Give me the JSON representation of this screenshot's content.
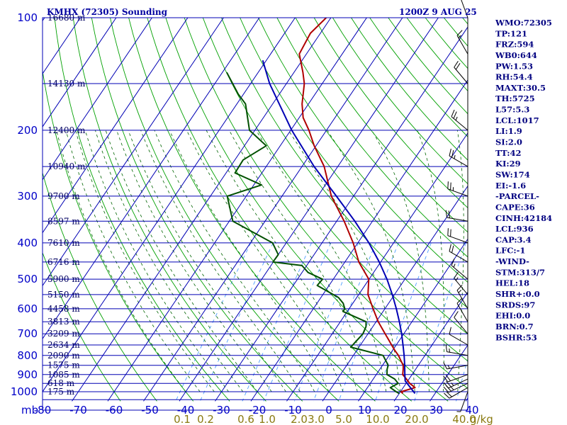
{
  "chart_data": {
    "type": "line",
    "title": "KMHX (72305) Sounding",
    "valid_time": "1200Z  9 AUG 25",
    "pressure_unit": "mb",
    "height_unit": "m",
    "mixing_ratio_unit": "g/kg",
    "pressure_ticks": [
      100,
      200,
      300,
      400,
      500,
      600,
      700,
      800,
      900,
      1000
    ],
    "temperature_ticks": [
      -80,
      -70,
      -60,
      -50,
      -40,
      -30,
      -20,
      -10,
      0,
      10,
      20,
      30,
      40
    ],
    "mixing_ratio_ticks": [
      "0.1",
      "0.2",
      "0.6",
      "1.0",
      "2.0",
      "3.0",
      "5.0",
      "10.0",
      "20.0",
      "40.0"
    ],
    "height_labels": [
      {
        "p": 100,
        "text": "16680 m"
      },
      {
        "p": 150,
        "text": "14130 m"
      },
      {
        "p": 200,
        "text": "12400 m"
      },
      {
        "p": 250,
        "text": "10940 m"
      },
      {
        "p": 300,
        "text": "9700 m"
      },
      {
        "p": 350,
        "text": "8597 m"
      },
      {
        "p": 400,
        "text": "7610 m"
      },
      {
        "p": 450,
        "text": "6716 m"
      },
      {
        "p": 500,
        "text": "5900 m"
      },
      {
        "p": 550,
        "text": "5150 m"
      },
      {
        "p": 600,
        "text": "4458 m"
      },
      {
        "p": 650,
        "text": "3813 m"
      },
      {
        "p": 700,
        "text": "3209 m"
      },
      {
        "p": 750,
        "text": "2634 m"
      },
      {
        "p": 800,
        "text": "2090 m"
      },
      {
        "p": 850,
        "text": "1575 m"
      },
      {
        "p": 900,
        "text": "1085 m"
      },
      {
        "p": 950,
        "text": "618 m"
      },
      {
        "p": 1000,
        "text": "175 m"
      }
    ],
    "series": [
      {
        "name": "Temperature",
        "color": "#b00000",
        "points": [
          [
            1011,
            21.0
          ],
          [
            1000,
            20.2
          ],
          [
            975,
            23.3
          ],
          [
            950,
            21.0
          ],
          [
            925,
            19.3
          ],
          [
            900,
            17.4
          ],
          [
            870,
            16.5
          ],
          [
            850,
            15.8
          ],
          [
            825,
            14.2
          ],
          [
            800,
            12.6
          ],
          [
            775,
            10.6
          ],
          [
            750,
            8.7
          ],
          [
            725,
            6.8
          ],
          [
            700,
            4.8
          ],
          [
            650,
            0.6
          ],
          [
            600,
            -3.3
          ],
          [
            575,
            -5.3
          ],
          [
            550,
            -7.4
          ],
          [
            500,
            -10.1
          ],
          [
            450,
            -16.1
          ],
          [
            400,
            -21.3
          ],
          [
            350,
            -27.9
          ],
          [
            300,
            -36.2
          ],
          [
            250,
            -43.8
          ],
          [
            220,
            -50.5
          ],
          [
            200,
            -54.9
          ],
          [
            185,
            -58.9
          ],
          [
            170,
            -61.8
          ],
          [
            150,
            -65.0
          ],
          [
            140,
            -67.5
          ],
          [
            125,
            -72.0
          ],
          [
            110,
            -72.8
          ],
          [
            100,
            -71.3
          ]
        ]
      },
      {
        "name": "Dewpoint",
        "color": "#005000",
        "points": [
          [
            1011,
            20.0
          ],
          [
            1000,
            18.8
          ],
          [
            975,
            16.4
          ],
          [
            950,
            17.8
          ],
          [
            925,
            16.0
          ],
          [
            900,
            13.0
          ],
          [
            870,
            12.0
          ],
          [
            850,
            11.6
          ],
          [
            800,
            8.3
          ],
          [
            760,
            -2.3
          ],
          [
            700,
            -1.4
          ],
          [
            670,
            -1.9
          ],
          [
            650,
            -2.8
          ],
          [
            610,
            -11.2
          ],
          [
            600,
            -11.2
          ],
          [
            580,
            -12.7
          ],
          [
            560,
            -15.1
          ],
          [
            520,
            -23.3
          ],
          [
            500,
            -23.0
          ],
          [
            480,
            -28.3
          ],
          [
            460,
            -31.3
          ],
          [
            450,
            -40.1
          ],
          [
            430,
            -40.0
          ],
          [
            400,
            -43.8
          ],
          [
            350,
            -59.0
          ],
          [
            300,
            -65.3
          ],
          [
            280,
            -57.8
          ],
          [
            260,
            -67.5
          ],
          [
            240,
            -67.7
          ],
          [
            220,
            -63.9
          ],
          [
            200,
            -71.5
          ],
          [
            170,
            -77.6
          ],
          [
            160,
            -81.5
          ],
          [
            140,
            -88.8
          ]
        ]
      },
      {
        "name": "Parcel",
        "color": "#0000b4",
        "points": [
          [
            1011,
            24.4
          ],
          [
            936,
            19.3
          ],
          [
            900,
            18.0
          ],
          [
            850,
            16.2
          ],
          [
            800,
            14.2
          ],
          [
            750,
            11.9
          ],
          [
            700,
            9.4
          ],
          [
            650,
            6.5
          ],
          [
            600,
            3.2
          ],
          [
            550,
            -0.6
          ],
          [
            500,
            -5.0
          ],
          [
            450,
            -10.4
          ],
          [
            400,
            -16.9
          ],
          [
            350,
            -24.9
          ],
          [
            300,
            -34.8
          ],
          [
            250,
            -46.6
          ],
          [
            200,
            -59.7
          ],
          [
            150,
            -74.7
          ],
          [
            130,
            -81.0
          ]
        ]
      }
    ],
    "wind_barbs": [
      {
        "p": 1000,
        "dir": 200,
        "spd": 5
      },
      {
        "p": 975,
        "dir": 240,
        "spd": 20
      },
      {
        "p": 950,
        "dir": 245,
        "spd": 25
      },
      {
        "p": 925,
        "dir": 245,
        "spd": 25
      },
      {
        "p": 900,
        "dir": 250,
        "spd": 20
      },
      {
        "p": 850,
        "dir": 260,
        "spd": 15
      },
      {
        "p": 800,
        "dir": 280,
        "spd": 15
      },
      {
        "p": 750,
        "dir": 300,
        "spd": 10
      },
      {
        "p": 700,
        "dir": 320,
        "spd": 10
      },
      {
        "p": 650,
        "dir": 330,
        "spd": 10
      },
      {
        "p": 600,
        "dir": 330,
        "spd": 15
      },
      {
        "p": 550,
        "dir": 320,
        "spd": 15
      },
      {
        "p": 500,
        "dir": 310,
        "spd": 15
      },
      {
        "p": 450,
        "dir": 300,
        "spd": 20
      },
      {
        "p": 400,
        "dir": 290,
        "spd": 20
      },
      {
        "p": 350,
        "dir": 280,
        "spd": 20
      },
      {
        "p": 300,
        "dir": 290,
        "spd": 25
      },
      {
        "p": 250,
        "dir": 300,
        "spd": 25
      },
      {
        "p": 200,
        "dir": 310,
        "spd": 25
      },
      {
        "p": 150,
        "dir": 320,
        "spd": 20
      },
      {
        "p": 125,
        "dir": 330,
        "spd": 15
      },
      {
        "p": 100,
        "dir": 340,
        "spd": 10
      }
    ],
    "colors": {
      "isobar": "#0000b4",
      "isotherm": "#0000b4",
      "dry_adiabat": "#00a000",
      "moist_adiabat": "#006400",
      "mixing_ratio": "#50a0ff",
      "wind": "#000000"
    }
  },
  "indices": [
    "WMO:72305",
    "TP:121",
    "FRZ:594",
    "WB0:644",
    "PW:1.53",
    "RH:54.4",
    "MAXT:30.5",
    "TH:5725",
    "L57:5.3",
    "LCL:1017",
    "LI:1.9",
    "SI:2.0",
    "TT:42",
    "KI:29",
    "SW:174",
    "EI:-1.6",
    "-PARCEL-",
    "CAPE:36",
    "CINH:42184",
    "LCL:936",
    "CAP:3.4",
    "LFC:-1",
    "-WIND-",
    "STM:313/7",
    "HEL:18",
    "SHR+:0.0",
    "SRDS:97",
    "EHI:0.0",
    "BRN:0.7",
    "BSHR:53"
  ]
}
